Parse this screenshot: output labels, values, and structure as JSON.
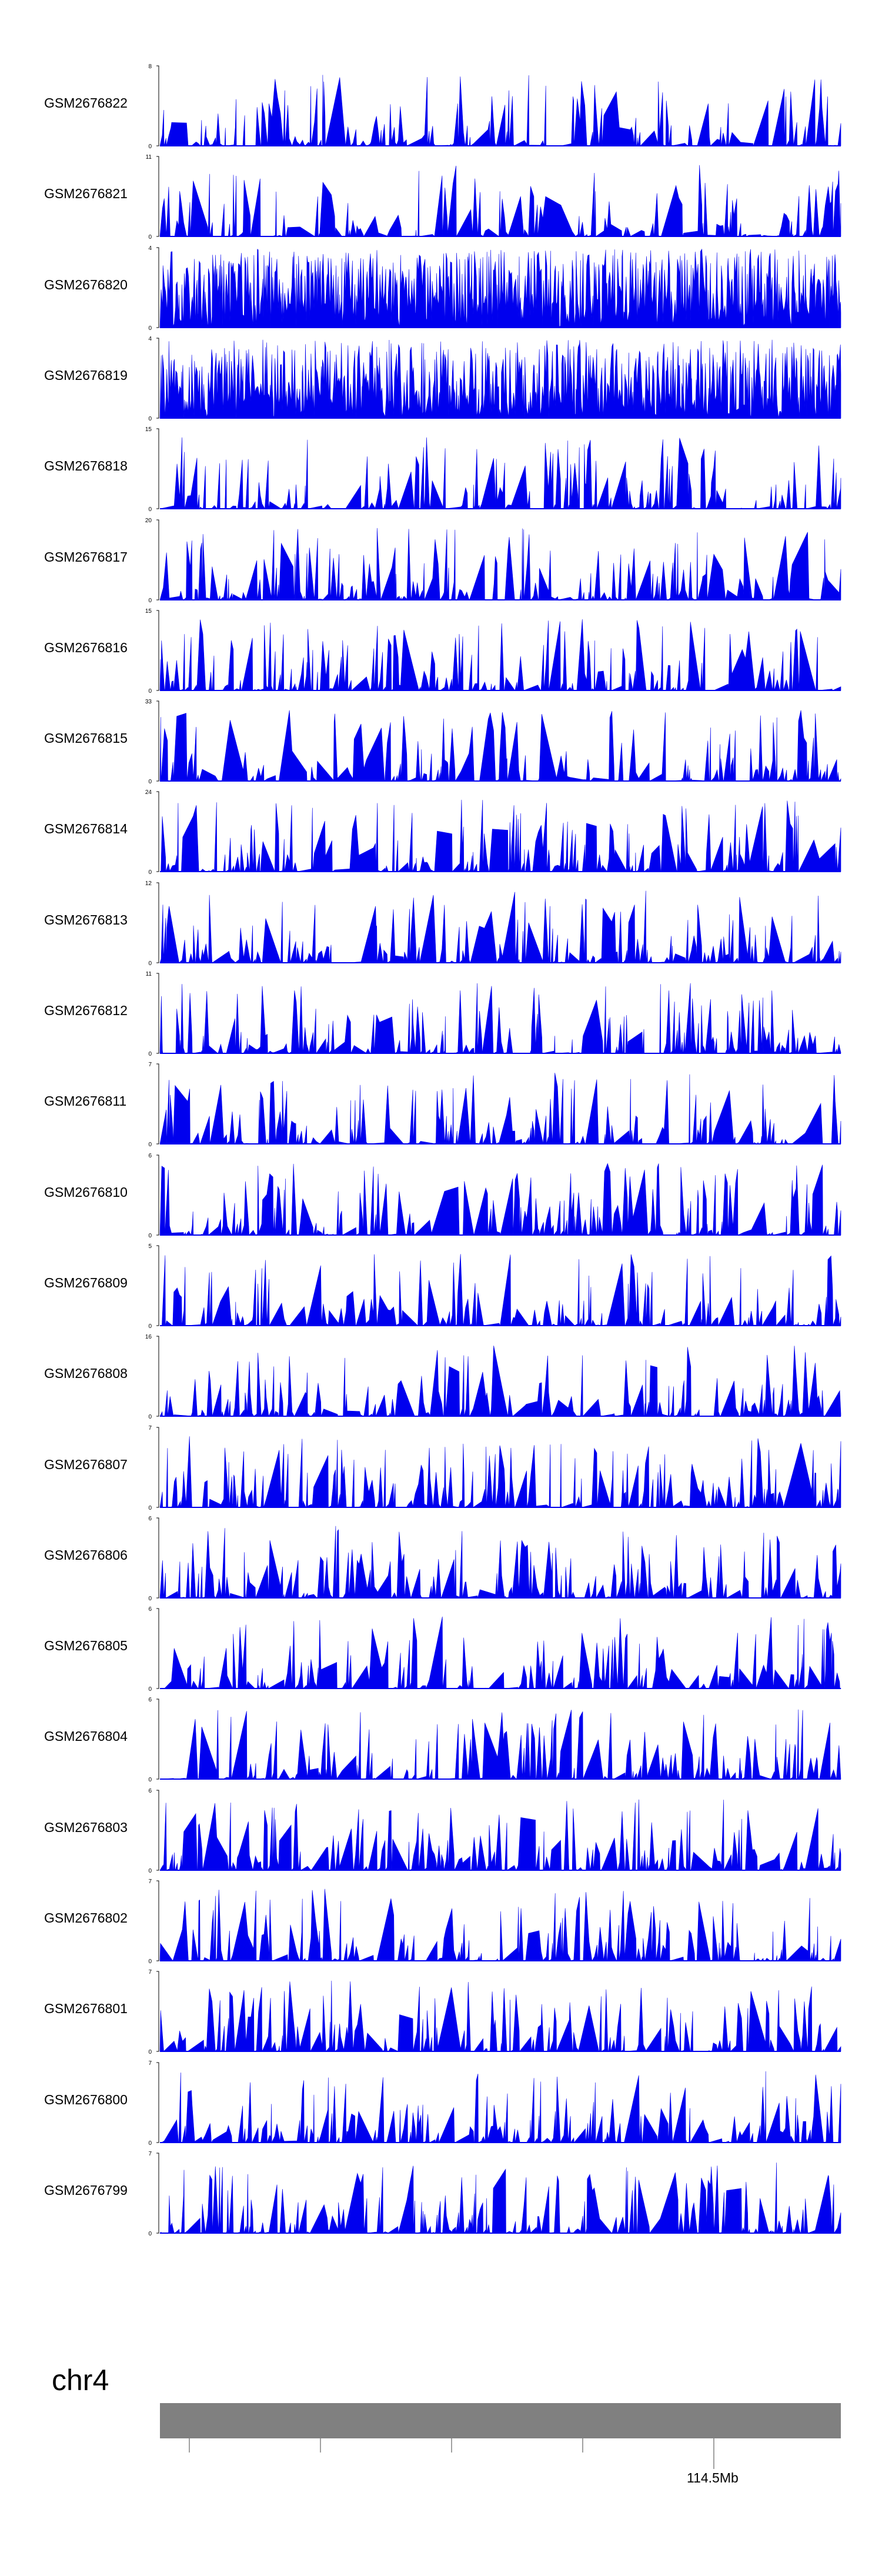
{
  "chart_data": {
    "type": "area",
    "title": "",
    "chromosome": "chr4",
    "scale_label": "114.5Mb",
    "series_color": "#0000EE",
    "ideogram_color": "#808080",
    "y_axis_min_label": "0",
    "tracks": [
      {
        "name": "GSM2676822",
        "ymax": 8
      },
      {
        "name": "GSM2676821",
        "ymax": 11
      },
      {
        "name": "GSM2676820",
        "ymax": 4
      },
      {
        "name": "GSM2676819",
        "ymax": 4
      },
      {
        "name": "GSM2676818",
        "ymax": 15
      },
      {
        "name": "GSM2676817",
        "ymax": 20
      },
      {
        "name": "GSM2676816",
        "ymax": 15
      },
      {
        "name": "GSM2676815",
        "ymax": 33
      },
      {
        "name": "GSM2676814",
        "ymax": 24
      },
      {
        "name": "GSM2676813",
        "ymax": 12
      },
      {
        "name": "GSM2676812",
        "ymax": 11
      },
      {
        "name": "GSM2676811",
        "ymax": 7
      },
      {
        "name": "GSM2676810",
        "ymax": 6
      },
      {
        "name": "GSM2676809",
        "ymax": 5
      },
      {
        "name": "GSM2676808",
        "ymax": 16
      },
      {
        "name": "GSM2676807",
        "ymax": 7
      },
      {
        "name": "GSM2676806",
        "ymax": 6
      },
      {
        "name": "GSM2676805",
        "ymax": 6
      },
      {
        "name": "GSM2676804",
        "ymax": 6
      },
      {
        "name": "GSM2676803",
        "ymax": 6
      },
      {
        "name": "GSM2676802",
        "ymax": 7
      },
      {
        "name": "GSM2676801",
        "ymax": 7
      },
      {
        "name": "GSM2676800",
        "ymax": 7
      },
      {
        "name": "GSM2676799",
        "ymax": 7
      }
    ]
  }
}
